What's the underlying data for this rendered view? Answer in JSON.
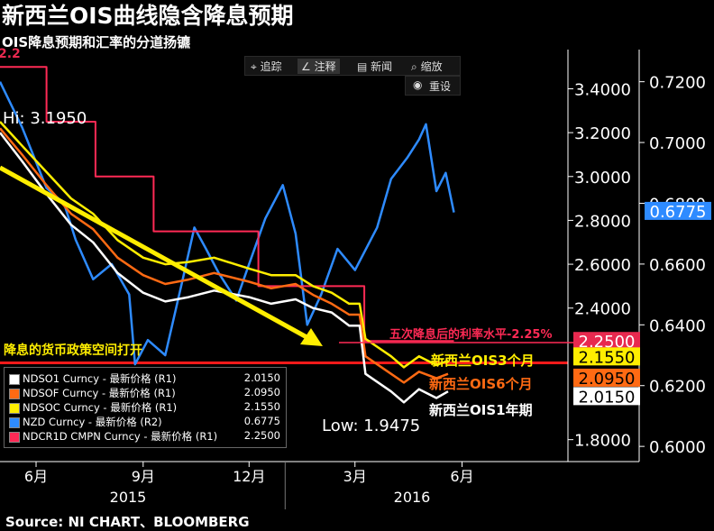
{
  "title": "新西兰OIS曲线隐含降息预期",
  "subtitle": "OIS降息预期和汇率的分道扬镳",
  "footer": "Source: NI CHART、BLOOMBERG",
  "toolbar": {
    "track_label": "追踪",
    "annotate_label": "注释",
    "news_label": "新闻",
    "zoom_label": "缩放",
    "reset_label": "重设"
  },
  "chart_data": {
    "type": "line",
    "x_start": "2015-05-01",
    "x_end": "2016-08-31",
    "x_ticks": [
      "6月",
      "9月",
      "12月",
      "3月",
      "6月"
    ],
    "x_tick_dates": [
      "2015-06-01",
      "2015-09-01",
      "2015-12-01",
      "2016-03-01",
      "2016-06-01"
    ],
    "years": [
      "2015",
      "2016"
    ],
    "left_axis": {
      "ylim": [
        1.7,
        3.55
      ],
      "ticks": [
        "1.8000",
        "2.4000",
        "2.6000",
        "2.8000",
        "3.0000",
        "3.2000",
        "3.4000"
      ]
    },
    "right_axis": {
      "ylim": [
        0.595,
        0.7285
      ],
      "ticks": [
        "0.6000",
        "0.6200",
        "0.6400",
        "0.6600",
        "0.6800",
        "0.7000",
        "0.7200"
      ]
    },
    "series": [
      {
        "name": "NDSO1 Curncy - 最新价格 (R1)",
        "last": "2.0150",
        "color": "#ffffff",
        "axis": "left",
        "points": [
          [
            "2015-05-01",
            3.2
          ],
          [
            "2015-05-20",
            3.07
          ],
          [
            "2015-06-10",
            2.92
          ],
          [
            "2015-07-01",
            2.78
          ],
          [
            "2015-07-20",
            2.7
          ],
          [
            "2015-08-10",
            2.56
          ],
          [
            "2015-09-01",
            2.47
          ],
          [
            "2015-09-20",
            2.43
          ],
          [
            "2015-10-10",
            2.45
          ],
          [
            "2015-11-01",
            2.48
          ],
          [
            "2015-12-01",
            2.45
          ],
          [
            "2015-12-20",
            2.42
          ],
          [
            "2016-01-10",
            2.44
          ],
          [
            "2016-01-25",
            2.4
          ],
          [
            "2016-02-10",
            2.38
          ],
          [
            "2016-02-25",
            2.32
          ],
          [
            "2016-03-05",
            2.32
          ],
          [
            "2016-03-10",
            2.1
          ],
          [
            "2016-04-01",
            2.02
          ],
          [
            "2016-04-12",
            1.97
          ],
          [
            "2016-04-25",
            2.03
          ],
          [
            "2016-05-10",
            1.99
          ],
          [
            "2016-05-20",
            2.02
          ]
        ]
      },
      {
        "name": "NDSOF Curncy - 最新价格 (R1)",
        "last": "2.0950",
        "color": "#ff6a13",
        "axis": "left",
        "points": [
          [
            "2015-05-01",
            3.22
          ],
          [
            "2015-05-20",
            3.1
          ],
          [
            "2015-06-10",
            2.96
          ],
          [
            "2015-07-01",
            2.83
          ],
          [
            "2015-07-20",
            2.76
          ],
          [
            "2015-08-10",
            2.63
          ],
          [
            "2015-09-01",
            2.55
          ],
          [
            "2015-09-20",
            2.51
          ],
          [
            "2015-10-10",
            2.53
          ],
          [
            "2015-11-01",
            2.56
          ],
          [
            "2015-12-01",
            2.52
          ],
          [
            "2015-12-20",
            2.49
          ],
          [
            "2016-01-10",
            2.51
          ],
          [
            "2016-01-25",
            2.46
          ],
          [
            "2016-02-10",
            2.42
          ],
          [
            "2016-02-25",
            2.37
          ],
          [
            "2016-03-05",
            2.37
          ],
          [
            "2016-03-10",
            2.18
          ],
          [
            "2016-04-01",
            2.1
          ],
          [
            "2016-04-12",
            2.06
          ],
          [
            "2016-04-25",
            2.11
          ],
          [
            "2016-05-10",
            2.08
          ],
          [
            "2016-05-20",
            2.1
          ]
        ]
      },
      {
        "name": "NDSOC Curncy - 最新价格 (R1)",
        "last": "2.1550",
        "color": "#ffee00",
        "axis": "left",
        "points": [
          [
            "2015-05-01",
            3.25
          ],
          [
            "2015-05-20",
            3.14
          ],
          [
            "2015-06-10",
            3.02
          ],
          [
            "2015-07-01",
            2.9
          ],
          [
            "2015-07-20",
            2.83
          ],
          [
            "2015-08-10",
            2.71
          ],
          [
            "2015-09-01",
            2.63
          ],
          [
            "2015-09-20",
            2.6
          ],
          [
            "2015-10-10",
            2.61
          ],
          [
            "2015-11-01",
            2.63
          ],
          [
            "2015-12-01",
            2.58
          ],
          [
            "2015-12-20",
            2.55
          ],
          [
            "2016-01-10",
            2.55
          ],
          [
            "2016-01-25",
            2.5
          ],
          [
            "2016-02-10",
            2.47
          ],
          [
            "2016-02-25",
            2.42
          ],
          [
            "2016-03-05",
            2.42
          ],
          [
            "2016-03-10",
            2.26
          ],
          [
            "2016-04-01",
            2.18
          ],
          [
            "2016-04-12",
            2.13
          ],
          [
            "2016-04-25",
            2.18
          ],
          [
            "2016-05-10",
            2.14
          ],
          [
            "2016-05-20",
            2.16
          ]
        ]
      },
      {
        "name": "NZD Curncy - 最新价格 (R2)",
        "last": "0.6775",
        "color": "#2e8bff",
        "axis": "right",
        "points": [
          [
            "2015-05-01",
            0.72
          ],
          [
            "2015-05-20",
            0.705
          ],
          [
            "2015-06-10",
            0.685
          ],
          [
            "2015-06-25",
            0.68
          ],
          [
            "2015-07-05",
            0.668
          ],
          [
            "2015-07-20",
            0.655
          ],
          [
            "2015-08-05",
            0.66
          ],
          [
            "2015-08-20",
            0.65
          ],
          [
            "2015-08-25",
            0.627
          ],
          [
            "2015-09-05",
            0.635
          ],
          [
            "2015-09-20",
            0.63
          ],
          [
            "2015-10-05",
            0.655
          ],
          [
            "2015-10-15",
            0.672
          ],
          [
            "2015-10-25",
            0.665
          ],
          [
            "2015-11-05",
            0.657
          ],
          [
            "2015-11-20",
            0.648
          ],
          [
            "2015-12-01",
            0.66
          ],
          [
            "2015-12-15",
            0.675
          ],
          [
            "2015-12-30",
            0.686
          ],
          [
            "2016-01-10",
            0.67
          ],
          [
            "2016-01-20",
            0.64
          ],
          [
            "2016-02-01",
            0.65
          ],
          [
            "2016-02-15",
            0.665
          ],
          [
            "2016-03-01",
            0.658
          ],
          [
            "2016-03-20",
            0.672
          ],
          [
            "2016-04-01",
            0.688
          ],
          [
            "2016-04-15",
            0.695
          ],
          [
            "2016-04-25",
            0.701
          ],
          [
            "2016-05-01",
            0.706
          ],
          [
            "2016-05-10",
            0.684
          ],
          [
            "2016-05-18",
            0.69
          ],
          [
            "2016-05-25",
            0.677
          ]
        ]
      },
      {
        "name": "NDCR1D CMPN Curncy - 最新价格 (R1)",
        "last": "2.2500",
        "color": "#ff2a55",
        "axis": "left",
        "points": [
          [
            "2015-05-01",
            3.5
          ],
          [
            "2015-06-10",
            3.5
          ],
          [
            "2015-06-10",
            3.25
          ],
          [
            "2015-07-22",
            3.25
          ],
          [
            "2015-07-22",
            3.0
          ],
          [
            "2015-09-10",
            3.0
          ],
          [
            "2015-09-10",
            2.75
          ],
          [
            "2015-12-09",
            2.75
          ],
          [
            "2015-12-09",
            2.5
          ],
          [
            "2016-03-09",
            2.5
          ],
          [
            "2016-03-09",
            2.25
          ],
          [
            "2016-05-25",
            2.25
          ]
        ]
      }
    ],
    "baseline": {
      "value": 2.15,
      "color": "#ff1a1a"
    },
    "annotations": {
      "hi": "Hi: 3.1950",
      "low": "Low: 1.9475",
      "arrow_label": "降息的货币政策空间打开",
      "rate_label": "五次降息后的利率水平-2.25%",
      "ois3_label": "新西兰OIS3个月",
      "ois6_label": "新西兰OIS6个月",
      "ois1y_label": "新西兰OIS1年期",
      "top_fragment": "2.2"
    }
  }
}
